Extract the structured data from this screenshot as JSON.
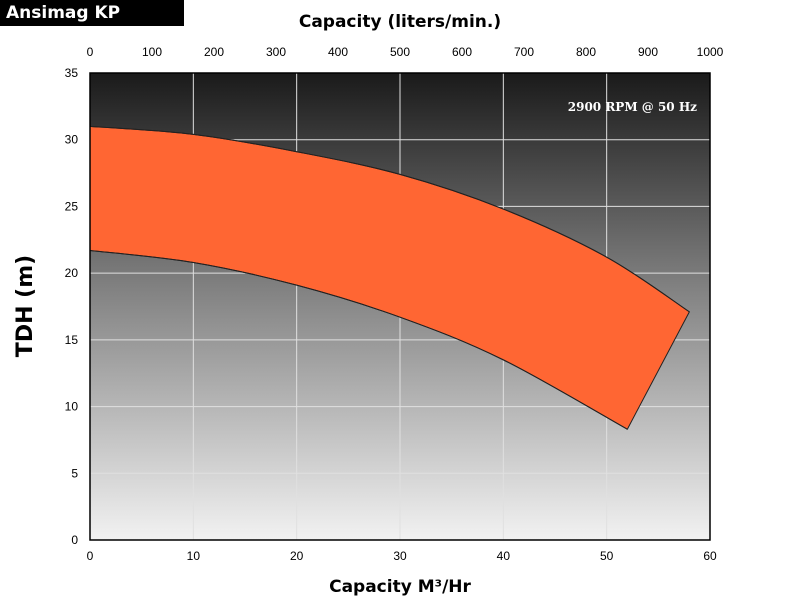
{
  "brand_label": "Ansimag KP",
  "chart_data": {
    "type": "area",
    "title": "",
    "xlabel": "Capacity M³/Hr",
    "x2label": "Capacity (liters/min.)",
    "ylabel": "TDH (m)",
    "xlim": [
      0,
      60
    ],
    "x2lim": [
      0,
      1000
    ],
    "ylim": [
      0,
      35
    ],
    "x_ticks": [
      0,
      10,
      20,
      30,
      40,
      50,
      60
    ],
    "x2_ticks": [
      0,
      100,
      200,
      300,
      400,
      500,
      600,
      700,
      800,
      900,
      1000
    ],
    "y_ticks": [
      0,
      5,
      10,
      15,
      20,
      25,
      30,
      35
    ],
    "grid": true,
    "annotation": "2900 RPM @ 50 Hz",
    "band_color": "#ff6633",
    "series": [
      {
        "x": [
          0,
          10,
          20,
          30,
          40,
          50,
          58
        ],
        "y": [
          31,
          30.4,
          29.1,
          27.4,
          24.8,
          21.2,
          17.1
        ]
      },
      {
        "x": [
          0,
          10,
          20,
          30,
          40,
          52
        ],
        "y": [
          21.7,
          20.8,
          19.1,
          16.7,
          13.5,
          8.3
        ]
      }
    ]
  }
}
